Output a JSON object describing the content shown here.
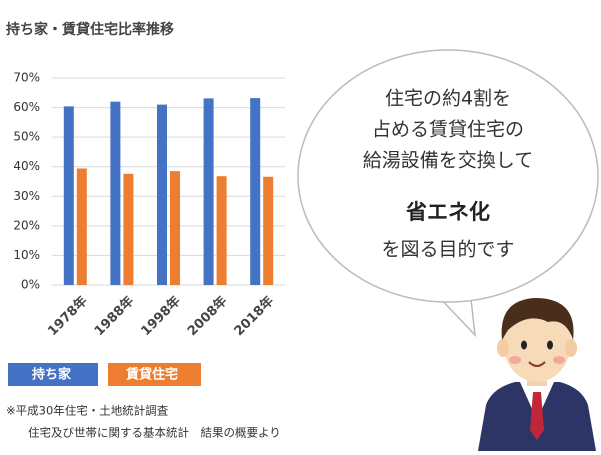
{
  "chart_data": {
    "type": "bar",
    "title": "持ち家・賃貸住宅比率推移",
    "categories": [
      "1978年",
      "1988年",
      "1998年",
      "2008年",
      "2018年"
    ],
    "series": [
      {
        "name": "持ち家",
        "color": "#4472c4",
        "values": [
          60.4,
          62.0,
          61.0,
          63.1,
          63.2
        ]
      },
      {
        "name": "賃貸住宅",
        "color": "#ed7d31",
        "values": [
          39.4,
          37.6,
          38.5,
          36.8,
          36.6
        ]
      }
    ],
    "ylim": [
      0,
      70
    ],
    "yticks": [
      {
        "value": 0,
        "label": "0%"
      },
      {
        "value": 10,
        "label": "10%"
      },
      {
        "value": 20,
        "label": "20%"
      },
      {
        "value": 30,
        "label": "30%"
      },
      {
        "value": 40,
        "label": "40%"
      },
      {
        "value": 50,
        "label": "50%"
      },
      {
        "value": 60,
        "label": "60%"
      },
      {
        "value": 70,
        "label": "70%"
      }
    ],
    "grid": true,
    "notes": [
      "※平成30年住宅・土地統計調査",
      "住宅及び世帯に関する基本統計　結果の概要より"
    ]
  },
  "callout": {
    "lines": [
      "住宅の約4割を",
      "占める賃貸住宅の",
      "給湯設備を交換して"
    ],
    "emphasis": "省エネ化",
    "closing": "を図る目的です"
  }
}
